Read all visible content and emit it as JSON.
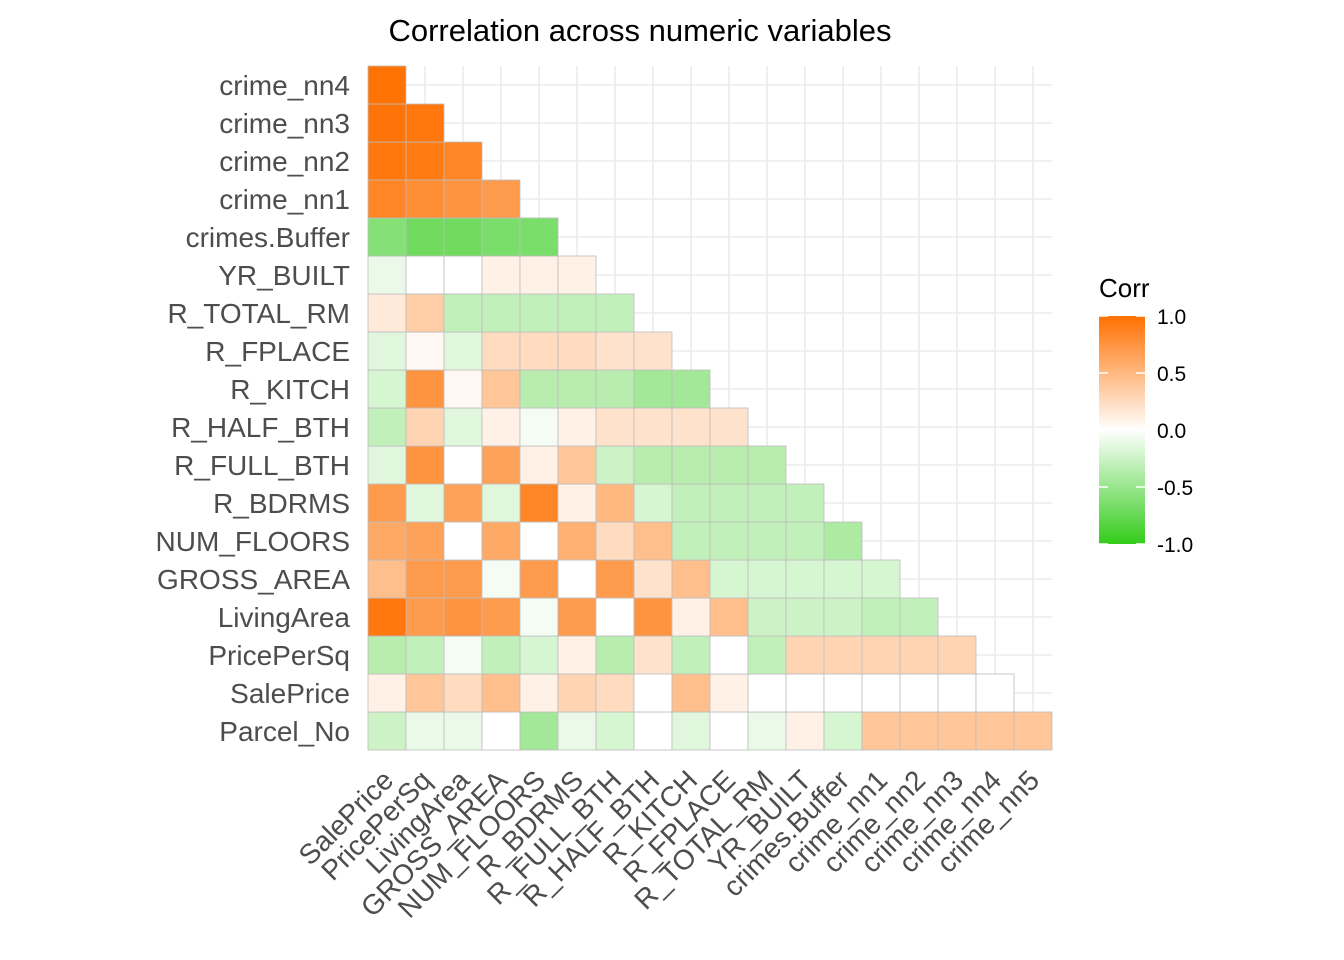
{
  "chart_data": {
    "type": "heatmap",
    "title": "Correlation across numeric variables",
    "xlabel": "",
    "ylabel": "",
    "x_labels": [
      "SalePrice",
      "PricePerSq",
      "LivingArea",
      "GROSS_AREA",
      "NUM_FLOORS",
      "R_BDRMS",
      "R_FULL_BTH",
      "R_HALF_BTH",
      "R_KITCH",
      "R_FPLACE",
      "R_TOTAL_RM",
      "YR_BUILT",
      "crimes.Buffer",
      "crime_nn1",
      "crime_nn2",
      "crime_nn3",
      "crime_nn4",
      "crime_nn5"
    ],
    "y_labels": [
      "Parcel_No",
      "SalePrice",
      "PricePerSq",
      "LivingArea",
      "GROSS_AREA",
      "NUM_FLOORS",
      "R_BDRMS",
      "R_FULL_BTH",
      "R_HALF_BTH",
      "R_KITCH",
      "R_FPLACE",
      "R_TOTAL_RM",
      "YR_BUILT",
      "crimes.Buffer",
      "crime_nn1",
      "crime_nn2",
      "crime_nn3",
      "crime_nn4"
    ],
    "values": [
      [
        -0.25,
        -0.1,
        -0.1,
        0.0,
        -0.45,
        -0.1,
        -0.2,
        0.0,
        -0.15,
        0.0,
        -0.1,
        0.1,
        -0.2,
        0.4,
        0.4,
        0.4,
        0.4,
        0.4
      ],
      [
        0.1,
        0.4,
        0.25,
        0.45,
        0.1,
        0.3,
        0.25,
        0.0,
        0.45,
        0.1,
        0.0,
        0.0,
        0.0,
        0.0,
        0.0,
        0.0,
        0.0,
        null
      ],
      [
        -0.35,
        -0.3,
        -0.05,
        -0.3,
        -0.2,
        0.1,
        -0.35,
        0.2,
        -0.3,
        0.0,
        -0.3,
        0.3,
        0.3,
        0.3,
        0.3,
        0.3,
        null,
        null
      ],
      [
        0.95,
        0.7,
        0.75,
        0.7,
        -0.05,
        0.7,
        0.0,
        0.75,
        0.1,
        0.45,
        -0.25,
        -0.25,
        -0.25,
        -0.3,
        -0.3,
        null,
        null,
        null
      ],
      [
        0.45,
        0.7,
        0.7,
        -0.05,
        0.7,
        0.0,
        0.7,
        0.2,
        0.45,
        -0.2,
        -0.2,
        -0.2,
        -0.2,
        -0.2,
        null,
        null,
        null,
        null
      ],
      [
        0.6,
        0.65,
        0.0,
        0.6,
        0.0,
        0.55,
        0.25,
        0.45,
        -0.3,
        -0.3,
        -0.3,
        -0.3,
        -0.4,
        null,
        null,
        null,
        null,
        null
      ],
      [
        0.7,
        -0.15,
        0.65,
        -0.15,
        0.85,
        0.1,
        0.5,
        -0.2,
        -0.3,
        -0.3,
        -0.3,
        -0.3,
        null,
        null,
        null,
        null,
        null,
        null
      ],
      [
        -0.15,
        0.75,
        0.0,
        0.65,
        0.1,
        0.4,
        -0.25,
        -0.35,
        -0.35,
        -0.35,
        -0.35,
        null,
        null,
        null,
        null,
        null,
        null,
        null
      ],
      [
        -0.3,
        0.3,
        -0.15,
        0.1,
        -0.05,
        0.1,
        0.2,
        0.2,
        0.2,
        0.2,
        null,
        null,
        null,
        null,
        null,
        null,
        null,
        null
      ],
      [
        -0.2,
        0.75,
        0.05,
        0.4,
        -0.35,
        -0.35,
        -0.35,
        -0.45,
        -0.45,
        null,
        null,
        null,
        null,
        null,
        null,
        null,
        null,
        null
      ],
      [
        -0.15,
        0.05,
        -0.15,
        0.25,
        0.25,
        0.25,
        0.2,
        0.2,
        null,
        null,
        null,
        null,
        null,
        null,
        null,
        null,
        null,
        null
      ],
      [
        0.15,
        0.35,
        -0.3,
        -0.3,
        -0.3,
        -0.3,
        -0.3,
        null,
        null,
        null,
        null,
        null,
        null,
        null,
        null,
        null,
        null,
        null
      ],
      [
        -0.1,
        0.0,
        0.0,
        0.1,
        0.1,
        0.1,
        null,
        null,
        null,
        null,
        null,
        null,
        null,
        null,
        null,
        null,
        null,
        null
      ],
      [
        -0.6,
        -0.7,
        -0.7,
        -0.65,
        -0.65,
        null,
        null,
        null,
        null,
        null,
        null,
        null,
        null,
        null,
        null,
        null,
        null,
        null
      ],
      [
        0.85,
        0.8,
        0.75,
        0.7,
        null,
        null,
        null,
        null,
        null,
        null,
        null,
        null,
        null,
        null,
        null,
        null,
        null,
        null
      ],
      [
        0.95,
        0.92,
        0.85,
        null,
        null,
        null,
        null,
        null,
        null,
        null,
        null,
        null,
        null,
        null,
        null,
        null,
        null,
        null
      ],
      [
        0.97,
        0.95,
        null,
        null,
        null,
        null,
        null,
        null,
        null,
        null,
        null,
        null,
        null,
        null,
        null,
        null,
        null,
        null
      ],
      [
        0.98,
        null,
        null,
        null,
        null,
        null,
        null,
        null,
        null,
        null,
        null,
        null,
        null,
        null,
        null,
        null,
        null,
        null
      ]
    ],
    "color_scale": {
      "low": "#33CC1A",
      "mid": "#FFFFFF",
      "high": "#FF7000",
      "limits": [
        -1.0,
        1.0
      ]
    },
    "legend": {
      "title": "Corr",
      "position": "right",
      "ticks": [
        1.0,
        0.5,
        0.0,
        -0.5,
        -1.0
      ],
      "tick_labels": [
        "1.0",
        "0.5",
        "0.0",
        "-0.5",
        "-1.0"
      ]
    },
    "grid": true
  }
}
